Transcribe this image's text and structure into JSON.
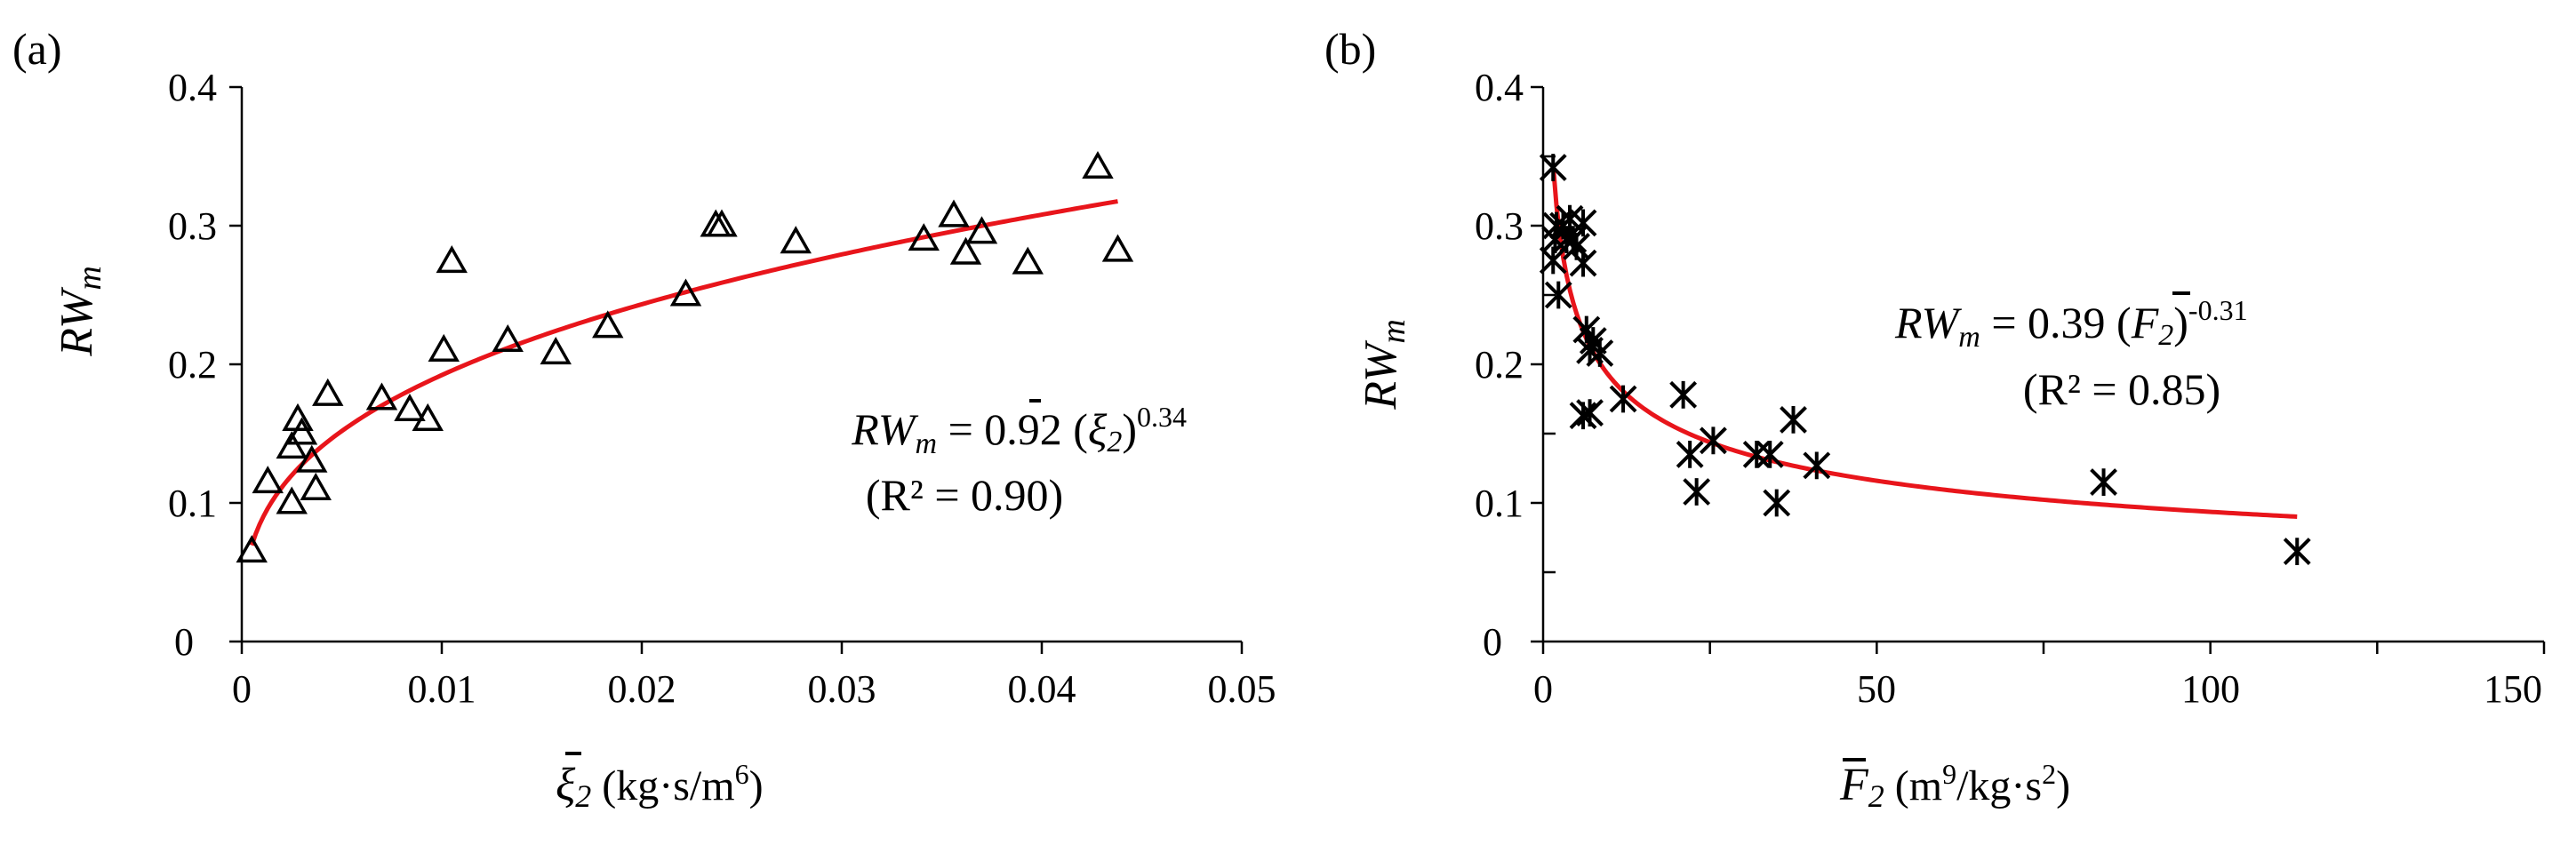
{
  "chart_data": [
    {
      "type": "scatter",
      "panel_label": "(a)",
      "ylabel": "RW",
      "ylabel_sub": "m",
      "xlabel_symbol": "ξ",
      "xlabel_sub": "2",
      "xlabel_units": " (kg·s/m",
      "xlabel_units_sup": "6",
      "xlabel_units_end": ")",
      "xlim": [
        0,
        0.05
      ],
      "ylim": [
        0,
        0.4
      ],
      "x_ticks": [
        0,
        0.01,
        0.02,
        0.03,
        0.04,
        0.05
      ],
      "x_tick_labels": [
        "0",
        "0.01",
        "0.02",
        "0.03",
        "0.04",
        "0.05"
      ],
      "y_ticks": [
        0,
        0.1,
        0.2,
        0.3,
        0.4
      ],
      "y_tick_labels": [
        "0",
        "0.1",
        "0.2",
        "0.3",
        "0.4"
      ],
      "grid": false,
      "marker": "triangle",
      "marker_color": "#000000",
      "fit_color": "#e8151b",
      "fit": {
        "form": "power",
        "a": 0.92,
        "b": 0.34,
        "x_range": [
          0.0005,
          0.0438
        ]
      },
      "equation_lhs": "RW",
      "equation_lhs_sub": "m",
      "equation_rhs": " = 0.92 (",
      "equation_symbol": "ξ",
      "equation_symbol_sub": "2",
      "equation_close": ")",
      "equation_exp": "0.34",
      "r2_text": "(R² = 0.90)",
      "points": [
        [
          0.0005,
          0.065
        ],
        [
          0.0013,
          0.115
        ],
        [
          0.0025,
          0.1
        ],
        [
          0.0025,
          0.14
        ],
        [
          0.0028,
          0.16
        ],
        [
          0.003,
          0.15
        ],
        [
          0.0035,
          0.13
        ],
        [
          0.0037,
          0.11
        ],
        [
          0.0043,
          0.178
        ],
        [
          0.007,
          0.175
        ],
        [
          0.0084,
          0.167
        ],
        [
          0.0093,
          0.16
        ],
        [
          0.0101,
          0.21
        ],
        [
          0.0105,
          0.274
        ],
        [
          0.0133,
          0.217
        ],
        [
          0.0157,
          0.208
        ],
        [
          0.0183,
          0.227
        ],
        [
          0.0222,
          0.25
        ],
        [
          0.0237,
          0.3
        ],
        [
          0.024,
          0.3
        ],
        [
          0.0277,
          0.288
        ],
        [
          0.0341,
          0.29
        ],
        [
          0.0356,
          0.307
        ],
        [
          0.0362,
          0.28
        ],
        [
          0.037,
          0.295
        ],
        [
          0.0393,
          0.273
        ],
        [
          0.0428,
          0.342
        ],
        [
          0.0438,
          0.282
        ]
      ]
    },
    {
      "type": "scatter",
      "panel_label": "(b)",
      "ylabel": "RW",
      "ylabel_sub": "m",
      "xlabel_symbol": "F",
      "xlabel_sub": "2",
      "xlabel_units": " (m",
      "xlabel_units_sup": "9",
      "xlabel_units_mid": "/kg·s",
      "xlabel_units_sup2": "2",
      "xlabel_units_end": ")",
      "xlim": [
        0,
        150
      ],
      "ylim": [
        0,
        0.4
      ],
      "x_ticks": [
        0,
        50,
        100,
        150
      ],
      "x_tick_labels": [
        "0",
        "50",
        "100",
        "150"
      ],
      "x_minor_ticks": [
        25,
        75,
        125
      ],
      "y_ticks": [
        0,
        0.1,
        0.2,
        0.3,
        0.4
      ],
      "y_tick_labels": [
        "0",
        "0.1",
        "0.2",
        "0.3",
        "0.4"
      ],
      "y_minor_ticks": [
        0.05,
        0.15,
        0.25,
        0.35
      ],
      "grid": false,
      "marker": "asterisk",
      "marker_color": "#000000",
      "fit_color": "#e8151b",
      "fit": {
        "form": "power",
        "a": 0.39,
        "b": -0.31,
        "x_range": [
          1.5,
          113
        ]
      },
      "equation_lhs": "RW",
      "equation_lhs_sub": "m",
      "equation_rhs": " = 0.39 (",
      "equation_symbol": "F",
      "equation_symbol_sub": "2",
      "equation_close": ")",
      "equation_exp": "-0.31",
      "r2_text": "(R² = 0.85)",
      "points": [
        [
          1.5,
          0.342
        ],
        [
          1.5,
          0.275
        ],
        [
          1.8,
          0.29
        ],
        [
          2.0,
          0.3
        ],
        [
          2.3,
          0.25
        ],
        [
          3.0,
          0.3
        ],
        [
          3.5,
          0.29
        ],
        [
          4.0,
          0.305
        ],
        [
          4.5,
          0.29
        ],
        [
          5.0,
          0.285
        ],
        [
          6.0,
          0.302
        ],
        [
          6.0,
          0.273
        ],
        [
          6.5,
          0.225
        ],
        [
          7.0,
          0.21
        ],
        [
          7.5,
          0.217
        ],
        [
          8.5,
          0.208
        ],
        [
          6.0,
          0.163
        ],
        [
          7.0,
          0.165
        ],
        [
          12.0,
          0.175
        ],
        [
          21.0,
          0.178
        ],
        [
          22.0,
          0.135
        ],
        [
          23.0,
          0.108
        ],
        [
          25.5,
          0.145
        ],
        [
          32.0,
          0.135
        ],
        [
          34.0,
          0.135
        ],
        [
          35.0,
          0.1
        ],
        [
          37.5,
          0.16
        ],
        [
          41.0,
          0.127
        ],
        [
          84.0,
          0.115
        ],
        [
          113.0,
          0.065
        ]
      ]
    }
  ]
}
